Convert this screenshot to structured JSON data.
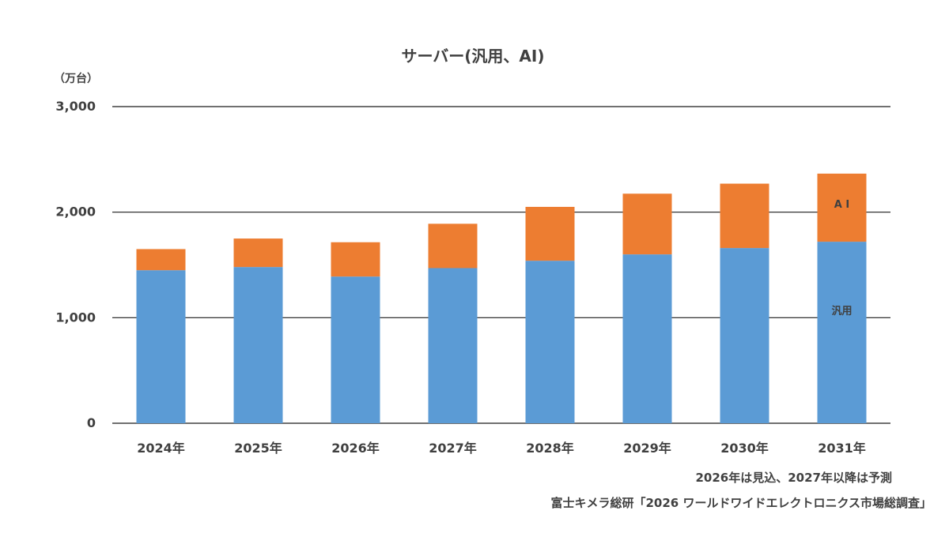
{
  "chart_data": {
    "type": "bar",
    "stacked": true,
    "title": "サーバー(汎用、AI)",
    "unit_label": "（万台）",
    "categories": [
      "2024年",
      "2025年",
      "2026年",
      "2027年",
      "2028年",
      "2029年",
      "2030年",
      "2031年"
    ],
    "series": [
      {
        "name": "汎用",
        "color": "#5b9bd5",
        "values": [
          1450,
          1480,
          1390,
          1470,
          1540,
          1600,
          1660,
          1720
        ]
      },
      {
        "name": "A I",
        "color": "#ed7d31",
        "values": [
          200,
          270,
          325,
          420,
          510,
          575,
          610,
          645
        ]
      }
    ],
    "ylim": [
      0,
      3000
    ],
    "yticks": [
      0,
      1000,
      2000,
      3000
    ],
    "ytick_labels": [
      "0",
      "1,000",
      "2,000",
      "3,000"
    ],
    "grid": true,
    "legend": "inline labels on last bar"
  },
  "footnote": "2026年は見込、2027年以降は予測",
  "source": "富士キメラ総研「2026 ワールドワイドエレクトロニクス市場総調査」"
}
